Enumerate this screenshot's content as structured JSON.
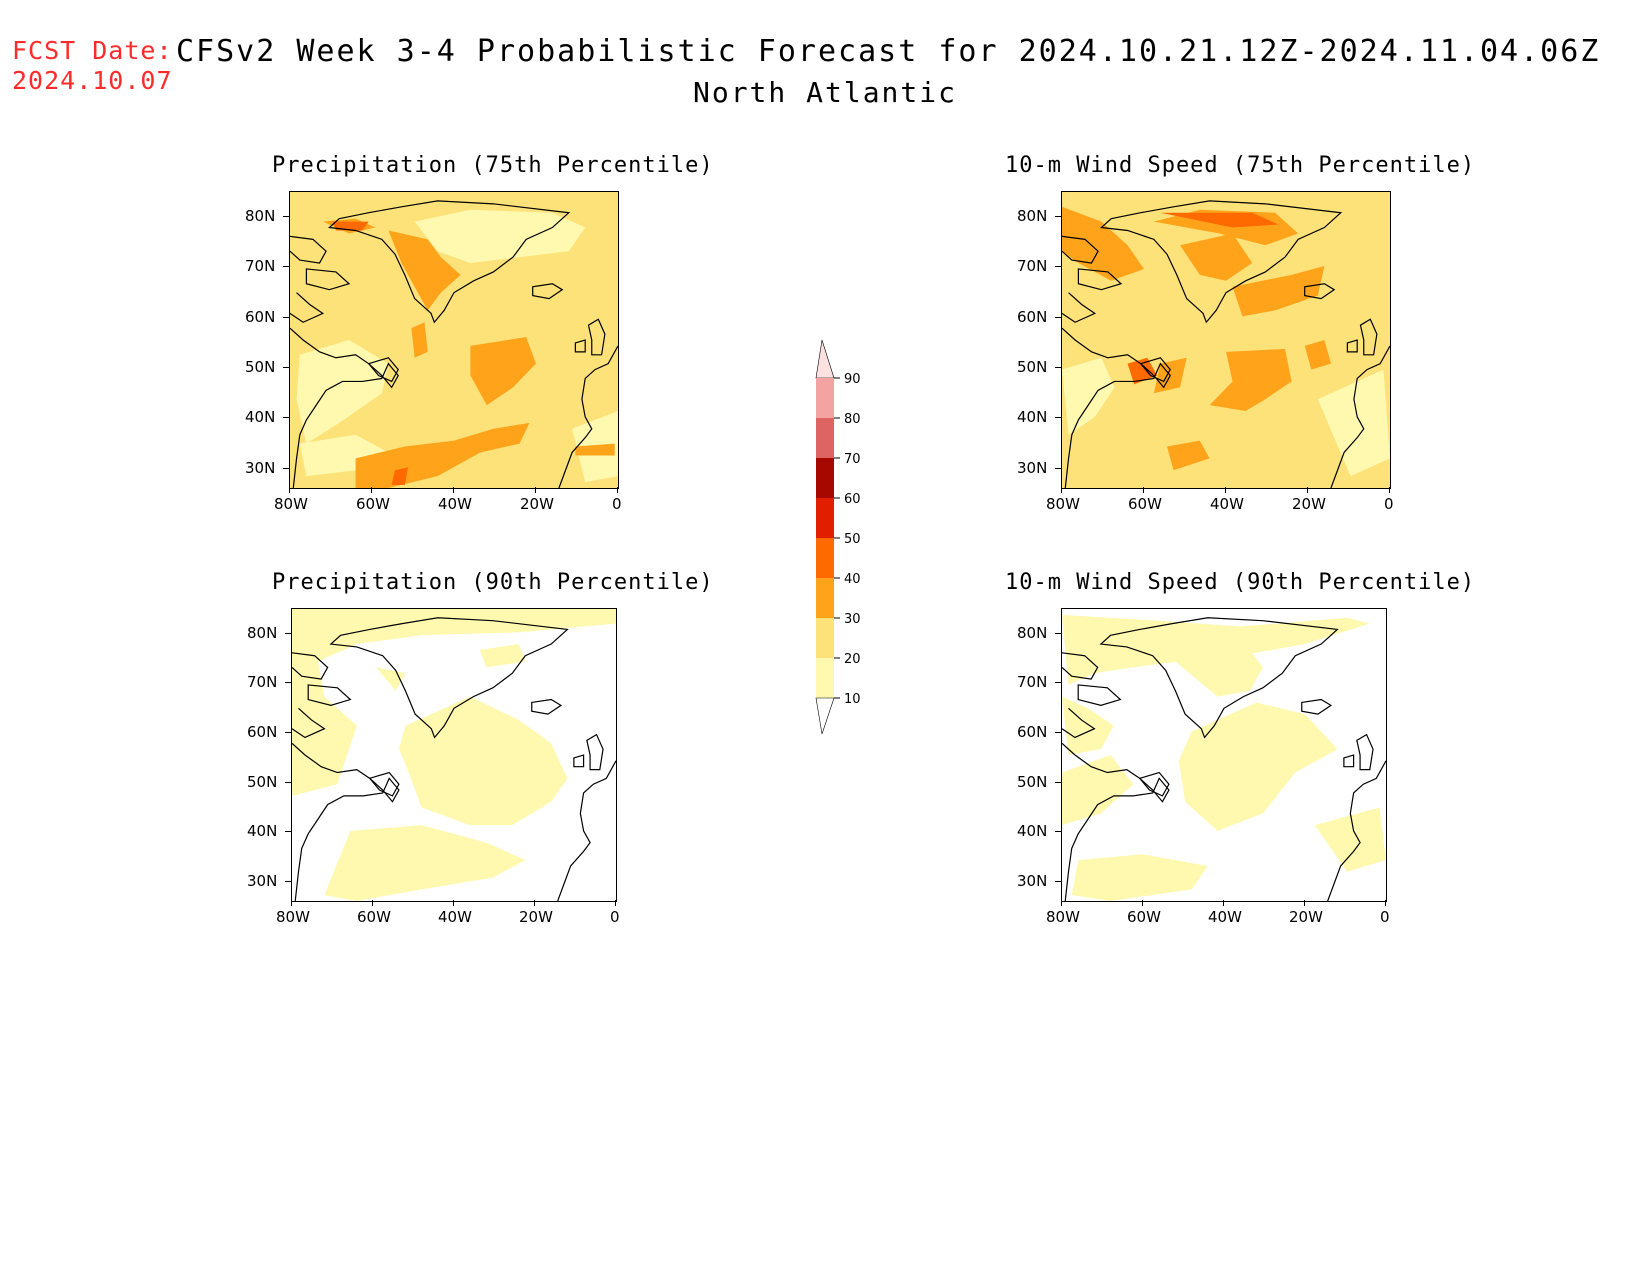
{
  "header": {
    "fcst_label": "FCST Date:",
    "fcst_date": "2024.10.07",
    "title": "CFSv2 Week 3-4 Probabilistic Forecast for 2024.10.21.12Z-2024.11.04.06Z",
    "region": "North Atlantic"
  },
  "panels": [
    {
      "title": "Precipitation (75th Percentile)",
      "field": "precip75"
    },
    {
      "title": "10-m Wind Speed (75th Percentile)",
      "field": "wind75"
    },
    {
      "title": "Precipitation (90th Percentile)",
      "field": "precip90"
    },
    {
      "title": "10-m Wind Speed (90th Percentile)",
      "field": "wind90"
    }
  ],
  "axes": {
    "lat_labels": [
      "80N",
      "70N",
      "60N",
      "50N",
      "40N",
      "30N"
    ],
    "lon_labels": [
      "80W",
      "60W",
      "40W",
      "20W",
      "0"
    ]
  },
  "colorbar": {
    "levels": [
      "10",
      "20",
      "30",
      "40",
      "50",
      "60",
      "70",
      "80",
      "90"
    ],
    "colors": [
      "#fff9b0",
      "#fde27a",
      "#ffa41a",
      "#ff6a00",
      "#e21e00",
      "#a60800",
      "#dd6462",
      "#f4a3a3",
      "#fde0e0"
    ]
  },
  "map_colors": {
    "background_white": "#ffffff",
    "c10": "#fff9b0",
    "c20": "#fde27a",
    "c30": "#ffa41a",
    "c40": "#ff6a00"
  }
}
